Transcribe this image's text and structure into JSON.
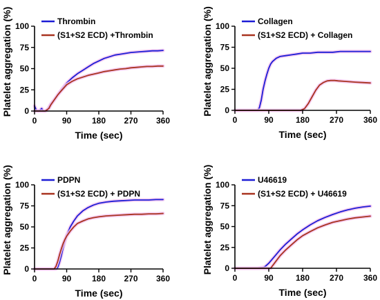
{
  "figure": {
    "colors": {
      "control": "#1c1cd6",
      "treated": "#a8321e",
      "band": "#f3c4ef",
      "axis": "#000000"
    }
  },
  "chart_data": [
    {
      "type": "line",
      "xlabel": "Time (sec)",
      "ylabel": "Platelet aggregation (%)",
      "xlim": [
        0,
        360
      ],
      "ylim": [
        0,
        100
      ],
      "xticks": [
        0,
        90,
        180,
        270,
        360
      ],
      "yticks": [
        0,
        25,
        50,
        75,
        100
      ],
      "grid": false,
      "legend": "top-left",
      "series": [
        {
          "name": "Thrombin",
          "color": "#1c1cd6",
          "x": [
            0,
            5,
            10,
            15,
            20,
            25,
            30,
            35,
            40,
            45,
            55,
            65,
            75,
            90,
            105,
            120,
            135,
            150,
            165,
            180,
            195,
            210,
            225,
            240,
            255,
            270,
            285,
            300,
            315,
            330,
            345,
            360
          ],
          "y": [
            6,
            1,
            0,
            1,
            3,
            0,
            0,
            1,
            4,
            8,
            13,
            19,
            25,
            33,
            39,
            44,
            48,
            52,
            56,
            59,
            62,
            64,
            66,
            67,
            68,
            69,
            69.5,
            70,
            70.5,
            71,
            71,
            71.5
          ]
        },
        {
          "name": "(S1+S2 ECD) +Thrombin",
          "color": "#a8321e",
          "x": [
            0,
            10,
            20,
            30,
            40,
            45,
            55,
            65,
            75,
            90,
            105,
            120,
            135,
            150,
            165,
            180,
            195,
            210,
            225,
            240,
            255,
            270,
            285,
            300,
            315,
            330,
            345,
            360
          ],
          "y": [
            0,
            0,
            0,
            0,
            3,
            7,
            13,
            19,
            24,
            31,
            35,
            38,
            40,
            42,
            43.5,
            45,
            46.5,
            47.5,
            48.5,
            49.5,
            50,
            51,
            51.5,
            52,
            52.5,
            52.5,
            53,
            53
          ]
        }
      ]
    },
    {
      "type": "line",
      "xlabel": "Time (sec)",
      "ylabel": "Platelet aggregation (%)",
      "xlim": [
        0,
        360
      ],
      "ylim": [
        0,
        100
      ],
      "xticks": [
        0,
        90,
        180,
        270,
        360
      ],
      "yticks": [
        0,
        25,
        50,
        75,
        100
      ],
      "grid": false,
      "legend": "top-left",
      "series": [
        {
          "name": "Collagen",
          "color": "#1c1cd6",
          "x": [
            0,
            30,
            60,
            65,
            70,
            75,
            80,
            85,
            90,
            95,
            100,
            110,
            120,
            135,
            150,
            165,
            180,
            200,
            220,
            240,
            260,
            280,
            300,
            320,
            340,
            360
          ],
          "y": [
            0,
            0,
            0,
            3,
            12,
            25,
            35,
            43,
            50,
            55,
            58,
            62,
            64,
            65,
            66,
            67,
            68,
            68,
            69,
            69,
            69,
            70,
            70,
            70,
            70,
            70
          ]
        },
        {
          "name": "(S1+S2 ECD) + Collagen",
          "color": "#a8321e",
          "x": [
            0,
            60,
            120,
            175,
            185,
            195,
            205,
            215,
            225,
            235,
            245,
            255,
            265,
            275,
            290,
            305,
            320,
            340,
            360
          ],
          "y": [
            0,
            0,
            0,
            0,
            2,
            8,
            16,
            24,
            30,
            33,
            35,
            35.5,
            35.5,
            35,
            34.5,
            34,
            33.5,
            33,
            32.5
          ]
        }
      ]
    },
    {
      "type": "line",
      "xlabel": "Time (sec)",
      "ylabel": "Platelet aggregation (%)",
      "xlim": [
        0,
        360
      ],
      "ylim": [
        0,
        100
      ],
      "xticks": [
        0,
        90,
        180,
        270,
        360
      ],
      "yticks": [
        0,
        25,
        50,
        75,
        100
      ],
      "grid": false,
      "legend": "top-left",
      "series": [
        {
          "name": "PDPN",
          "color": "#1c1cd6",
          "x": [
            0,
            30,
            60,
            65,
            70,
            75,
            80,
            85,
            90,
            100,
            110,
            120,
            135,
            150,
            165,
            180,
            200,
            220,
            240,
            260,
            280,
            300,
            320,
            340,
            360
          ],
          "y": [
            0,
            0,
            0,
            2,
            8,
            16,
            25,
            33,
            40,
            50,
            57,
            63,
            69,
            73,
            76,
            78,
            79.5,
            80.5,
            81,
            81.5,
            82,
            82,
            82,
            82.5,
            82.5
          ]
        },
        {
          "name": "(S1+S2 ECD) + PDPN",
          "color": "#a8321e",
          "x": [
            0,
            30,
            55,
            60,
            65,
            70,
            75,
            80,
            85,
            90,
            100,
            110,
            120,
            135,
            150,
            165,
            180,
            200,
            220,
            240,
            260,
            280,
            300,
            320,
            340,
            360
          ],
          "y": [
            0,
            0,
            0,
            3,
            9,
            17,
            24,
            30,
            35,
            39,
            45,
            50,
            54,
            57,
            59.5,
            61,
            62,
            63,
            63.5,
            64,
            64.5,
            65,
            65,
            65.5,
            65.5,
            66
          ]
        }
      ]
    },
    {
      "type": "line",
      "xlabel": "Time (sec)",
      "ylabel": "Platelet aggregation (%)",
      "xlim": [
        0,
        360
      ],
      "ylim": [
        0,
        100
      ],
      "xticks": [
        0,
        90,
        180,
        270,
        360
      ],
      "yticks": [
        0,
        25,
        50,
        75,
        100
      ],
      "grid": false,
      "legend": "top-left",
      "series": [
        {
          "name": "U46619",
          "color": "#1c1cd6",
          "x": [
            0,
            30,
            60,
            75,
            80,
            90,
            105,
            120,
            135,
            150,
            165,
            180,
            200,
            220,
            240,
            260,
            280,
            300,
            320,
            340,
            360
          ],
          "y": [
            0,
            0,
            0,
            1,
            2,
            6,
            14,
            22,
            29,
            35,
            41,
            46,
            52,
            57,
            61,
            64.5,
            67.5,
            70,
            72,
            73.5,
            74.5
          ]
        },
        {
          "name": "(S1+S2 ECD) + U46619",
          "color": "#a8321e",
          "x": [
            0,
            40,
            80,
            95,
            100,
            110,
            120,
            135,
            150,
            165,
            180,
            200,
            220,
            240,
            260,
            280,
            300,
            320,
            340,
            360
          ],
          "y": [
            0,
            0,
            0,
            0,
            3,
            9,
            15,
            22,
            28,
            34,
            39,
            44,
            48.5,
            52,
            55,
            57,
            59,
            60.5,
            61.5,
            62.5
          ]
        }
      ]
    }
  ]
}
